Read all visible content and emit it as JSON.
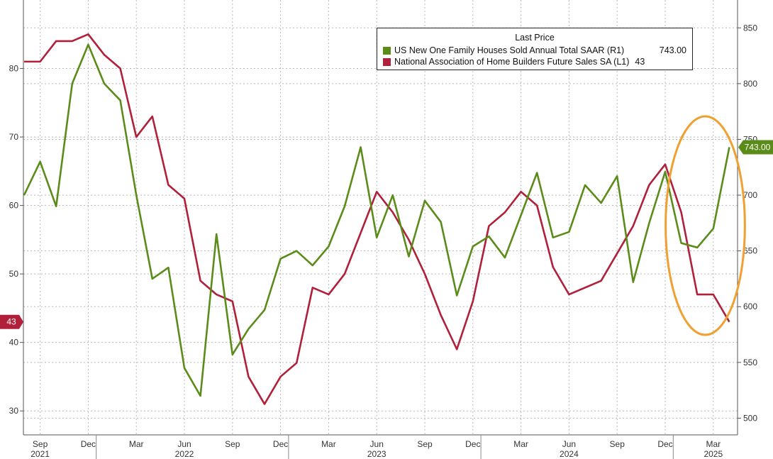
{
  "chart_data": {
    "type": "line",
    "title": "",
    "legend": {
      "title": "Last Price",
      "placement": "top-right",
      "entries": [
        {
          "label": "US New One Family Houses Sold Annual Total SAAR  (R1)",
          "value": "743.00",
          "color": "#5b8c1a"
        },
        {
          "label": "National Association of Home Builders Future Sales SA  (L1)",
          "value": "43",
          "color": "#b0203a"
        }
      ]
    },
    "x": [
      "2021-08",
      "2021-09",
      "2021-10",
      "2021-11",
      "2021-12",
      "2022-01",
      "2022-02",
      "2022-03",
      "2022-04",
      "2022-05",
      "2022-06",
      "2022-07",
      "2022-08",
      "2022-09",
      "2022-10",
      "2022-11",
      "2022-12",
      "2023-01",
      "2023-02",
      "2023-03",
      "2023-04",
      "2023-05",
      "2023-06",
      "2023-07",
      "2023-08",
      "2023-09",
      "2023-10",
      "2023-11",
      "2023-12",
      "2024-01",
      "2024-02",
      "2024-03",
      "2024-04",
      "2024-05",
      "2024-06",
      "2024-07",
      "2024-08",
      "2024-09",
      "2024-10",
      "2024-11",
      "2024-12",
      "2025-01",
      "2025-02",
      "2025-03",
      "2025-04"
    ],
    "x_axis": {
      "month_labels": [
        {
          "date": "2021-09",
          "label": "Sep"
        },
        {
          "date": "2021-12",
          "label": "Dec"
        },
        {
          "date": "2022-03",
          "label": "Mar"
        },
        {
          "date": "2022-06",
          "label": "Jun"
        },
        {
          "date": "2022-09",
          "label": "Sep"
        },
        {
          "date": "2022-12",
          "label": "Dec"
        },
        {
          "date": "2023-03",
          "label": "Mar"
        },
        {
          "date": "2023-06",
          "label": "Jun"
        },
        {
          "date": "2023-09",
          "label": "Sep"
        },
        {
          "date": "2023-12",
          "label": "Dec"
        },
        {
          "date": "2024-03",
          "label": "Mar"
        },
        {
          "date": "2024-06",
          "label": "Jun"
        },
        {
          "date": "2024-09",
          "label": "Sep"
        },
        {
          "date": "2024-12",
          "label": "Dec"
        },
        {
          "date": "2025-03",
          "label": "Mar"
        }
      ],
      "year_labels": [
        {
          "date": "2021-09",
          "label": "2021"
        },
        {
          "date": "2022-06",
          "label": "2022"
        },
        {
          "date": "2023-06",
          "label": "2023"
        },
        {
          "date": "2024-06",
          "label": "2024"
        },
        {
          "date": "2025-03",
          "label": "2025"
        }
      ],
      "year_boundaries": [
        "2022-01",
        "2023-01",
        "2024-01",
        "2025-01"
      ]
    },
    "left_axis": {
      "ylim": [
        26.5,
        90
      ],
      "ticks": [
        30,
        40,
        50,
        60,
        70,
        80
      ]
    },
    "right_axis": {
      "ylim": [
        485,
        875
      ],
      "ticks": [
        500,
        550,
        600,
        650,
        700,
        750,
        800,
        850
      ]
    },
    "series": [
      {
        "name": "National Association of Home Builders Future Sales SA  (L1)",
        "axis": "left",
        "color": "#b0203a",
        "values": [
          81,
          81,
          84,
          84,
          85,
          82,
          80,
          70,
          73,
          63,
          61,
          49,
          47,
          46,
          35,
          31,
          35,
          37,
          48,
          47,
          50,
          56,
          62,
          59,
          55,
          50,
          44,
          39,
          46,
          57,
          59,
          62,
          60,
          51,
          47,
          48,
          49,
          53,
          57,
          63,
          66,
          59,
          47,
          47,
          43
        ],
        "last_value": "43"
      },
      {
        "name": "US New One Family Houses Sold Annual Total SAAR  (R1)",
        "axis": "right",
        "color": "#5b8c1a",
        "values": [
          700,
          730,
          690,
          800,
          835,
          800,
          785,
          700,
          625,
          635,
          545,
          520,
          665,
          557,
          580,
          597,
          643,
          650,
          637,
          654,
          690,
          743,
          662,
          700,
          645,
          695,
          676,
          610,
          654,
          663,
          644,
          682,
          720,
          662,
          667,
          709,
          693,
          717,
          622,
          675,
          721,
          657,
          653,
          670,
          743
        ],
        "last_value": "743.00"
      }
    ],
    "annotations": [
      {
        "type": "ellipse",
        "color": "#f0a030",
        "around": [
          "2025-01",
          "2025-04"
        ]
      }
    ],
    "grid": true
  }
}
